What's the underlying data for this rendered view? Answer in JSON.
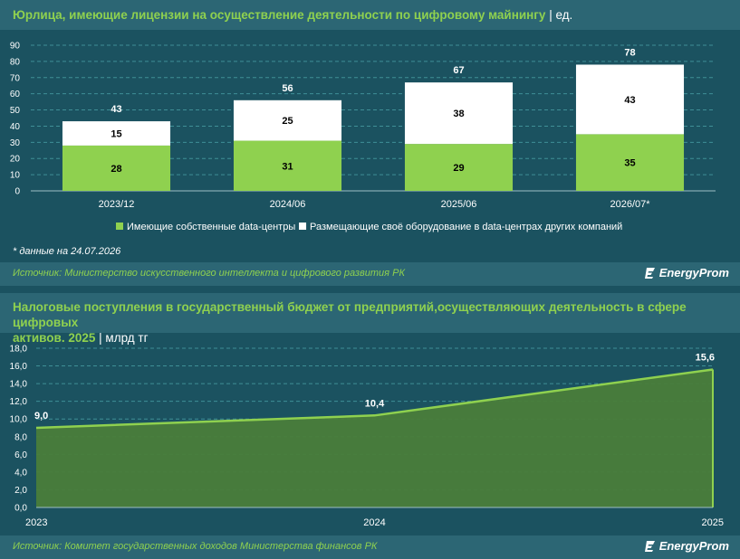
{
  "chart1": {
    "title": "Юрлица, имеющие лицензии на осуществление деятельности по цифровому майнингу",
    "unit": "ед.",
    "note": "* данные на 24.07.2026",
    "source": "Источник: Министерство искусственного интеллекта и цифрового развития РК",
    "logo": "EnergyProm"
  },
  "chart2": {
    "title_line1": "Налоговые поступления в государственный бюджет от предприятий,осуществляющих деятельность в сфере цифровых",
    "title_line2": "активов. 2025",
    "unit": "млрд тг",
    "source": "Источник: Комитет государственных доходов Министерства финансов РК",
    "logo": "EnergyProm"
  },
  "chart_data": [
    {
      "type": "bar",
      "stacked": true,
      "categories": [
        "2023/12",
        "2024/06",
        "2025/06",
        "2026/07*"
      ],
      "series": [
        {
          "name": "Имеющие собственные data-центры",
          "values": [
            28,
            31,
            29,
            35
          ],
          "color": "#8fd14f"
        },
        {
          "name": "Размещающие своё оборудование в data-центрах других компаний",
          "values": [
            15,
            25,
            38,
            43
          ],
          "color": "#ffffff"
        }
      ],
      "totals": [
        43,
        56,
        67,
        78
      ],
      "ylim": [
        0,
        90
      ],
      "yticks": [
        "0",
        "10",
        "20",
        "30",
        "40",
        "50",
        "60",
        "70",
        "80",
        "90"
      ],
      "grid": true,
      "legend": "bottom"
    },
    {
      "type": "area",
      "x": [
        "2023",
        "2024",
        "2025"
      ],
      "values": [
        9.0,
        10.4,
        15.6
      ],
      "labels": [
        "9,0",
        "10,4",
        "15,6"
      ],
      "ylim": [
        0,
        18
      ],
      "yticks": [
        "0,0",
        "2,0",
        "4,0",
        "6,0",
        "8,0",
        "10,0",
        "12,0",
        "14,0",
        "16,0",
        "18,0"
      ],
      "color": "#8fd14f",
      "grid": true
    }
  ]
}
